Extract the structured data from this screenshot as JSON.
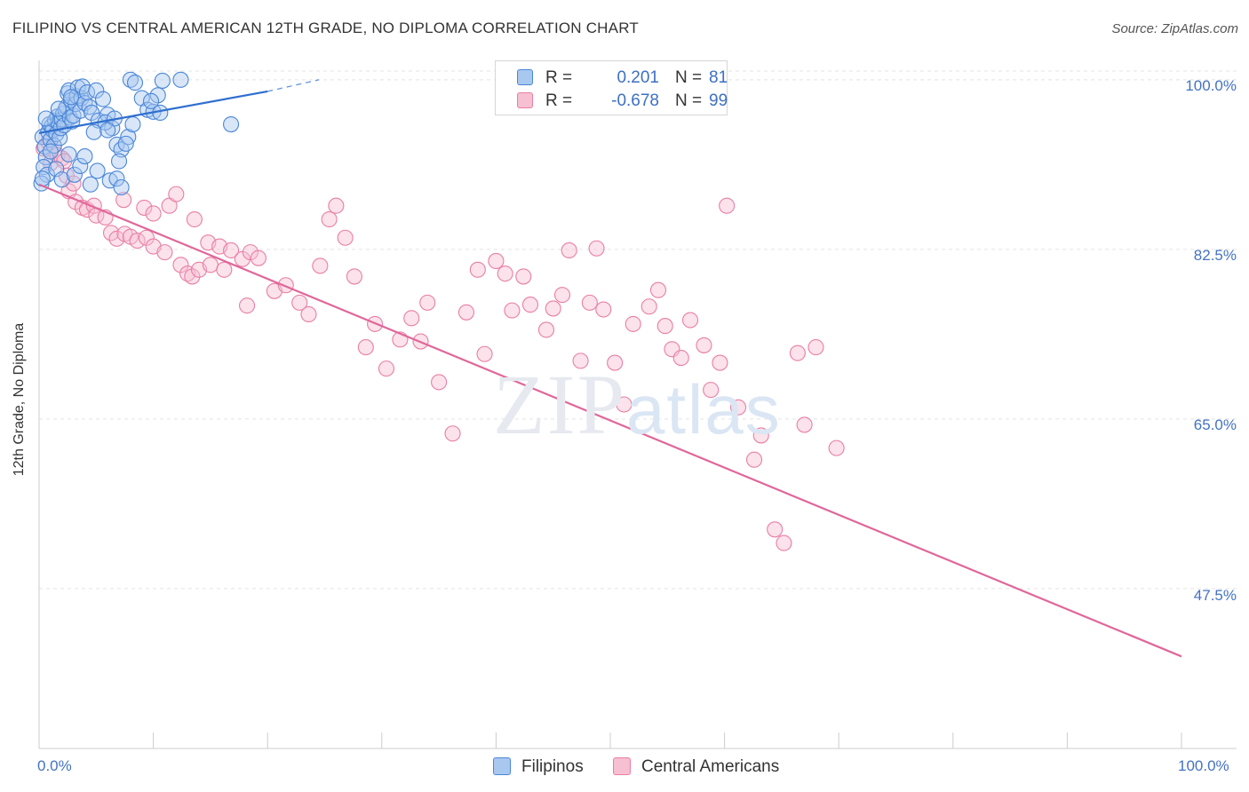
{
  "title": "FILIPINO VS CENTRAL AMERICAN 12TH GRADE, NO DIPLOMA CORRELATION CHART",
  "source": "Source: ZipAtlas.com",
  "watermark": {
    "zip": "ZIP",
    "atlas": "atlas"
  },
  "legend": {
    "r_label": "R =",
    "n_label": "N =",
    "rows": [
      {
        "r": "0.201",
        "n": "81"
      },
      {
        "r": "-0.678",
        "n": "99"
      }
    ]
  },
  "colors": {
    "blue_fill": "#a9c8f0",
    "blue_stroke": "#4a86d8",
    "blue_line": "#2f6fce",
    "pink_fill": "#f6bfd2",
    "pink_stroke": "#e97ea4",
    "pink_line": "#e0679a",
    "grid": "#e3e3e3",
    "tick_label": "#4472c4"
  },
  "chart_data": {
    "type": "scatter",
    "title": "FILIPINO VS CENTRAL AMERICAN 12TH GRADE, NO DIPLOMA CORRELATION CHART",
    "xlabel": "",
    "ylabel": "12th Grade, No Diploma",
    "xlim": [
      0,
      100
    ],
    "ylim": [
      31,
      102
    ],
    "x_tick_labels": [
      "0.0%",
      "100.0%"
    ],
    "y_ticks": [
      {
        "value": 47.5,
        "label": "47.5%"
      },
      {
        "value": 65.0,
        "label": "65.0%"
      },
      {
        "value": 82.5,
        "label": "82.5%"
      },
      {
        "value": 100.0,
        "label": "100.0%"
      }
    ],
    "grid": true,
    "legend_position": "top-center",
    "series": [
      {
        "name": "Filipinos",
        "r": 0.201,
        "n": 81,
        "trend": {
          "x0": 0.0,
          "y0": 94.5,
          "x1": 20.0,
          "y1": 98.8,
          "dash_to_x": 24.5,
          "dash_to_y": 100.0
        },
        "points": [
          [
            0.3,
            94.1
          ],
          [
            0.5,
            93.1
          ],
          [
            0.6,
            92.0
          ],
          [
            0.8,
            94.6
          ],
          [
            0.9,
            95.4
          ],
          [
            1.0,
            93.8
          ],
          [
            1.1,
            95.2
          ],
          [
            1.2,
            94.8
          ],
          [
            1.3,
            93.2
          ],
          [
            1.4,
            95.8
          ],
          [
            1.5,
            94.4
          ],
          [
            1.6,
            96.2
          ],
          [
            1.7,
            95.6
          ],
          [
            1.8,
            94.0
          ],
          [
            1.9,
            95.0
          ],
          [
            2.0,
            95.9
          ],
          [
            2.1,
            96.5
          ],
          [
            2.2,
            95.3
          ],
          [
            2.3,
            96.9
          ],
          [
            2.4,
            97.2
          ],
          [
            2.5,
            98.6
          ],
          [
            2.6,
            98.9
          ],
          [
            2.7,
            96.1
          ],
          [
            2.8,
            97.9
          ],
          [
            2.9,
            95.7
          ],
          [
            3.0,
            96.3
          ],
          [
            3.2,
            97.5
          ],
          [
            3.3,
            98.3
          ],
          [
            3.4,
            99.2
          ],
          [
            3.6,
            96.8
          ],
          [
            3.7,
            98.1
          ],
          [
            3.8,
            99.3
          ],
          [
            4.0,
            97.6
          ],
          [
            4.2,
            98.7
          ],
          [
            4.4,
            97.2
          ],
          [
            4.6,
            96.6
          ],
          [
            5.0,
            98.9
          ],
          [
            5.2,
            95.8
          ],
          [
            5.6,
            98.0
          ],
          [
            6.0,
            96.4
          ],
          [
            6.4,
            95.0
          ],
          [
            6.8,
            93.3
          ],
          [
            7.2,
            92.8
          ],
          [
            8.0,
            100.0
          ],
          [
            8.4,
            99.7
          ],
          [
            9.0,
            98.1
          ],
          [
            9.5,
            96.9
          ],
          [
            10.0,
            96.7
          ],
          [
            10.4,
            98.4
          ],
          [
            10.8,
            99.9
          ],
          [
            0.4,
            91.0
          ],
          [
            0.7,
            90.2
          ],
          [
            1.0,
            92.6
          ],
          [
            1.5,
            90.8
          ],
          [
            2.0,
            89.7
          ],
          [
            2.6,
            92.3
          ],
          [
            3.1,
            90.2
          ],
          [
            3.6,
            91.1
          ],
          [
            4.0,
            92.1
          ],
          [
            4.5,
            89.2
          ],
          [
            5.1,
            90.6
          ],
          [
            6.2,
            89.6
          ],
          [
            6.8,
            89.8
          ],
          [
            7.2,
            88.9
          ],
          [
            7.8,
            94.1
          ],
          [
            0.2,
            89.3
          ],
          [
            0.3,
            89.8
          ],
          [
            0.6,
            96.0
          ],
          [
            1.7,
            97.0
          ],
          [
            8.2,
            95.4
          ],
          [
            9.8,
            97.8
          ],
          [
            10.6,
            96.6
          ],
          [
            12.4,
            100.0
          ],
          [
            16.8,
            95.4
          ],
          [
            2.8,
            98.2
          ],
          [
            5.8,
            95.6
          ],
          [
            6.6,
            96.0
          ],
          [
            4.8,
            94.6
          ],
          [
            7.0,
            91.6
          ],
          [
            6.0,
            94.8
          ],
          [
            7.6,
            93.4
          ]
        ]
      },
      {
        "name": "Central Americans",
        "r": -0.678,
        "n": 99,
        "trend": {
          "x0": 0.0,
          "y0": 89.2,
          "x1": 100.0,
          "y1": 40.5
        },
        "points": [
          [
            0.4,
            92.9
          ],
          [
            0.8,
            93.6
          ],
          [
            1.0,
            91.4
          ],
          [
            1.3,
            93.2
          ],
          [
            1.6,
            92.2
          ],
          [
            2.0,
            91.9
          ],
          [
            2.2,
            91.6
          ],
          [
            2.4,
            90.1
          ],
          [
            2.6,
            88.5
          ],
          [
            3.0,
            89.3
          ],
          [
            3.2,
            87.4
          ],
          [
            3.8,
            86.8
          ],
          [
            4.2,
            86.6
          ],
          [
            4.8,
            87.0
          ],
          [
            5.0,
            86.0
          ],
          [
            5.8,
            85.8
          ],
          [
            6.3,
            84.2
          ],
          [
            6.8,
            83.6
          ],
          [
            7.5,
            84.1
          ],
          [
            8.0,
            83.8
          ],
          [
            8.6,
            83.4
          ],
          [
            9.4,
            83.7
          ],
          [
            10.0,
            82.8
          ],
          [
            11.0,
            82.2
          ],
          [
            12.4,
            80.9
          ],
          [
            13.0,
            80.0
          ],
          [
            13.4,
            79.7
          ],
          [
            14.0,
            80.4
          ],
          [
            15.0,
            80.9
          ],
          [
            16.2,
            80.4
          ],
          [
            7.4,
            87.6
          ],
          [
            9.2,
            86.8
          ],
          [
            10.0,
            86.2
          ],
          [
            11.4,
            87.0
          ],
          [
            12.0,
            88.2
          ],
          [
            13.6,
            85.6
          ],
          [
            14.8,
            83.2
          ],
          [
            15.8,
            82.8
          ],
          [
            16.8,
            82.4
          ],
          [
            17.8,
            81.5
          ],
          [
            18.2,
            76.7
          ],
          [
            18.5,
            82.2
          ],
          [
            19.2,
            81.6
          ],
          [
            20.6,
            78.2
          ],
          [
            21.6,
            78.8
          ],
          [
            22.8,
            77.0
          ],
          [
            23.6,
            75.8
          ],
          [
            24.6,
            80.8
          ],
          [
            25.4,
            85.6
          ],
          [
            26.0,
            87.0
          ],
          [
            26.8,
            83.7
          ],
          [
            27.6,
            79.7
          ],
          [
            28.6,
            72.4
          ],
          [
            29.4,
            74.8
          ],
          [
            30.4,
            70.2
          ],
          [
            31.6,
            73.2
          ],
          [
            32.6,
            75.4
          ],
          [
            33.4,
            73.0
          ],
          [
            34.0,
            77.0
          ],
          [
            35.0,
            68.8
          ],
          [
            36.2,
            63.5
          ],
          [
            37.4,
            76.0
          ],
          [
            38.4,
            80.4
          ],
          [
            39.0,
            71.7
          ],
          [
            40.0,
            81.3
          ],
          [
            40.8,
            80.0
          ],
          [
            41.4,
            76.2
          ],
          [
            42.4,
            79.7
          ],
          [
            43.0,
            76.8
          ],
          [
            44.4,
            74.2
          ],
          [
            45.0,
            76.4
          ],
          [
            45.8,
            77.8
          ],
          [
            46.4,
            82.4
          ],
          [
            47.4,
            71.0
          ],
          [
            48.2,
            77.0
          ],
          [
            48.8,
            82.6
          ],
          [
            49.4,
            76.3
          ],
          [
            50.4,
            70.8
          ],
          [
            51.2,
            66.5
          ],
          [
            52.0,
            74.8
          ],
          [
            53.4,
            76.6
          ],
          [
            54.2,
            78.3
          ],
          [
            54.8,
            74.6
          ],
          [
            55.4,
            72.2
          ],
          [
            56.2,
            71.3
          ],
          [
            57.0,
            75.2
          ],
          [
            58.2,
            72.6
          ],
          [
            58.8,
            68.0
          ],
          [
            59.6,
            70.8
          ],
          [
            60.2,
            87.0
          ],
          [
            61.2,
            66.2
          ],
          [
            62.6,
            60.8
          ],
          [
            63.2,
            63.3
          ],
          [
            64.4,
            53.6
          ],
          [
            65.2,
            52.2
          ],
          [
            66.4,
            71.8
          ],
          [
            67.0,
            64.4
          ],
          [
            68.0,
            72.4
          ],
          [
            69.8,
            62.0
          ]
        ]
      }
    ]
  },
  "axes": {
    "ylabel": "12th Grade, No Diploma",
    "x_left": "0.0%",
    "x_right": "100.0%",
    "y_labels": [
      "100.0%",
      "82.5%",
      "65.0%",
      "47.5%"
    ]
  },
  "bottom_legend": {
    "items": [
      "Filipinos",
      "Central Americans"
    ]
  }
}
